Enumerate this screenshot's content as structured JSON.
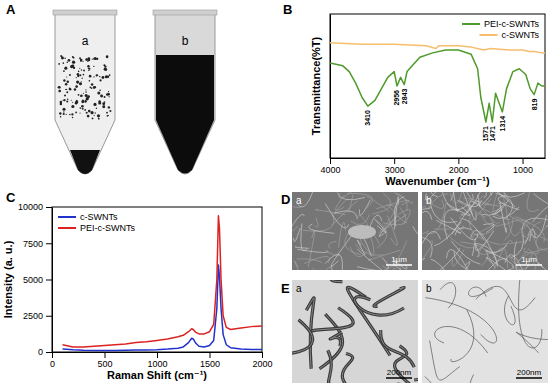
{
  "panel_labels": [
    "A",
    "B",
    "C",
    "D",
    "E"
  ],
  "image_panels": {
    "A": {
      "sublabels": [
        "a",
        "b"
      ]
    },
    "D": {
      "sublabels": [
        "a",
        "b"
      ],
      "scale_bars": [
        "1μm",
        "1μm"
      ]
    },
    "E": {
      "sublabels": [
        "a",
        "b"
      ],
      "scale_bars": [
        "200nm",
        "200nm"
      ]
    }
  },
  "chart_data": [
    {
      "type": "line",
      "x_label": "Wavenumber (cm⁻¹)",
      "y_label": "Transmittance(%T)",
      "xlim": [
        4000,
        650
      ],
      "xticks": [
        4000,
        3000,
        2000,
        1000
      ],
      "ylim": [
        0,
        100
      ],
      "tick_labels": "x",
      "legend": "top-right",
      "series": [
        {
          "name": "PEI-c-SWNTs",
          "color": "#4e9a2a",
          "x": [
            4000,
            3800,
            3700,
            3600,
            3500,
            3410,
            3300,
            3200,
            3100,
            3000,
            2956,
            2900,
            2843,
            2800,
            2600,
            2400,
            2200,
            2000,
            1800,
            1700,
            1650,
            1571,
            1520,
            1471,
            1420,
            1380,
            1314,
            1250,
            1150,
            1050,
            950,
            880,
            819,
            760,
            700,
            650
          ],
          "values": [
            66,
            64,
            60,
            52,
            42,
            36,
            40,
            48,
            56,
            60,
            50,
            56,
            51,
            60,
            70,
            73,
            75,
            75,
            72,
            62,
            42,
            25,
            38,
            25,
            45,
            40,
            32,
            48,
            60,
            62,
            58,
            48,
            44,
            52,
            50,
            50
          ]
        },
        {
          "name": "c-SWNTs",
          "color": "#f7bd6e",
          "x": [
            4000,
            3500,
            3000,
            2500,
            2350,
            2300,
            2000,
            1800,
            1600,
            1500,
            1200,
            1000,
            900,
            819,
            700,
            650
          ],
          "values": [
            80,
            79,
            79,
            78,
            76,
            78,
            78,
            77,
            75,
            76,
            75,
            75,
            74,
            74,
            73,
            73
          ]
        }
      ],
      "annotations": [
        {
          "text": "3410",
          "x": 3410
        },
        {
          "text": "2956",
          "x": 2956
        },
        {
          "text": "2843",
          "x": 2843
        },
        {
          "text": "1571",
          "x": 1571
        },
        {
          "text": "1471",
          "x": 1471
        },
        {
          "text": "1314",
          "x": 1314
        },
        {
          "text": "819",
          "x": 819
        }
      ]
    },
    {
      "type": "line",
      "x_label": "Raman Shift (cm⁻¹)",
      "y_label": "Intensity (a. u.)",
      "xlim": [
        0,
        2000
      ],
      "xticks": [
        0,
        500,
        1000,
        1500,
        2000
      ],
      "ylim": [
        0,
        10000
      ],
      "yticks": [
        0,
        2500,
        5000,
        7500,
        10000
      ],
      "legend": "top-left",
      "series": [
        {
          "name": "c-SWNTs",
          "color": "#2233cc",
          "x": [
            100,
            200,
            300,
            400,
            500,
            600,
            700,
            800,
            900,
            1000,
            1100,
            1200,
            1250,
            1300,
            1330,
            1345,
            1370,
            1400,
            1450,
            1500,
            1540,
            1570,
            1585,
            1595,
            1610,
            1630,
            1660,
            1700,
            1800,
            1900,
            2000
          ],
          "values": [
            200,
            150,
            120,
            110,
            110,
            110,
            120,
            130,
            140,
            160,
            200,
            260,
            350,
            650,
            950,
            900,
            600,
            400,
            350,
            450,
            800,
            3000,
            6000,
            5200,
            3000,
            1200,
            500,
            300,
            200,
            180,
            170
          ]
        },
        {
          "name": "PEI-c-SWNTs",
          "color": "#dd2222",
          "x": [
            100,
            200,
            300,
            400,
            500,
            600,
            700,
            800,
            900,
            1000,
            1100,
            1200,
            1250,
            1300,
            1330,
            1345,
            1370,
            1400,
            1450,
            1500,
            1540,
            1570,
            1585,
            1595,
            1610,
            1630,
            1660,
            1700,
            1800,
            1900,
            2000
          ],
          "values": [
            500,
            350,
            350,
            400,
            450,
            500,
            550,
            650,
            700,
            800,
            900,
            1050,
            1150,
            1400,
            1600,
            1550,
            1350,
            1250,
            1250,
            1400,
            1900,
            5000,
            9400,
            8500,
            5000,
            2500,
            1700,
            1550,
            1650,
            1750,
            1800
          ]
        }
      ]
    }
  ]
}
